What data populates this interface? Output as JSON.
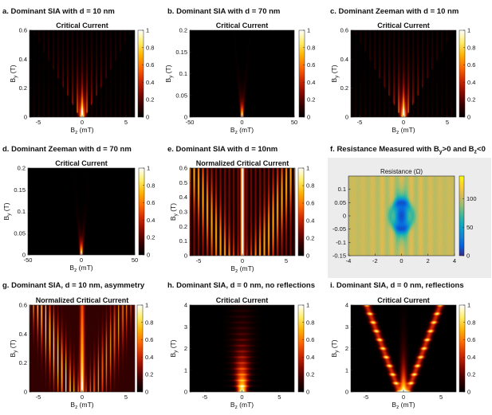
{
  "colors": {
    "heat": [
      "#000000",
      "#3a0000",
      "#8a0a00",
      "#d42a00",
      "#ff6a00",
      "#ffb300",
      "#ffee66",
      "#ffffff"
    ],
    "parula": [
      "#352a87",
      "#0363e1",
      "#1485d4",
      "#06a7c6",
      "#38b99e",
      "#92bf73",
      "#d9ba56",
      "#fcce2e",
      "#f9fb0e"
    ],
    "panel_f_bg": "#ececec"
  },
  "chart_data": [
    {
      "id": "a",
      "type": "heatmap",
      "panel_title": "a. Dominant SIA with d = 10 nm",
      "title": "Critical Current",
      "xlabel": "B",
      "xlabel_sub": "z",
      "xlabel_unit": " (mT)",
      "ylabel": "B",
      "ylabel_sub": "y",
      "ylabel_unit": " (T)",
      "xlim": [
        -6,
        6
      ],
      "ylim": [
        0,
        0.6
      ],
      "xticks": [
        -5,
        0,
        5
      ],
      "yticks": [
        0,
        0.2,
        0.4,
        0.6
      ],
      "xtick_labels": [
        "-5",
        "0",
        "5"
      ],
      "ytick_labels": [
        "0",
        "0.2",
        "0.4",
        "0.6"
      ],
      "colorbar": {
        "range": [
          0,
          1
        ],
        "ticks": [
          0,
          0.2,
          0.4,
          0.6,
          0.8,
          1
        ],
        "tick_labels": [
          "0",
          "0.2",
          "0.4",
          "0.6",
          "0.8",
          "1"
        ]
      },
      "pattern": "v_fan"
    },
    {
      "id": "b",
      "type": "heatmap",
      "panel_title": "b. Dominant SIA with d = 70 nm",
      "title": "Critical Current",
      "xlabel": "B",
      "xlabel_sub": "z",
      "xlabel_unit": " (mT)",
      "ylabel": "B",
      "ylabel_sub": "y",
      "ylabel_unit": " (T)",
      "xlim": [
        -50,
        50
      ],
      "ylim": [
        0,
        0.2
      ],
      "xticks": [
        -50,
        0,
        50
      ],
      "yticks": [
        0,
        0.05,
        0.1,
        0.15,
        0.2
      ],
      "xtick_labels": [
        "-50",
        "0",
        "50"
      ],
      "ytick_labels": [
        "0",
        "0.05",
        "0.1",
        "0.15",
        "0.2"
      ],
      "colorbar": {
        "range": [
          0,
          1
        ],
        "ticks": [
          0,
          0.2,
          0.4,
          0.6,
          0.8,
          1
        ],
        "tick_labels": [
          "0",
          "0.2",
          "0.4",
          "0.6",
          "0.8",
          "1"
        ]
      },
      "pattern": "narrow_v"
    },
    {
      "id": "c",
      "type": "heatmap",
      "panel_title": "c. Dominant Zeeman with d = 10 nm",
      "title": "Critical Current",
      "xlabel": "B",
      "xlabel_sub": "z",
      "xlabel_unit": " (mT)",
      "ylabel": "B",
      "ylabel_sub": "y",
      "ylabel_unit": " (T)",
      "xlim": [
        -6,
        6
      ],
      "ylim": [
        0,
        0.6
      ],
      "xticks": [
        -5,
        0,
        5
      ],
      "yticks": [
        0,
        0.2,
        0.4,
        0.6
      ],
      "xtick_labels": [
        "-5",
        "0",
        "5"
      ],
      "ytick_labels": [
        "0",
        "0.2",
        "0.4",
        "0.6"
      ],
      "colorbar": {
        "range": [
          0,
          1
        ],
        "ticks": [
          0,
          0.2,
          0.4,
          0.6,
          0.8,
          1
        ],
        "tick_labels": [
          "0",
          "0.2",
          "0.4",
          "0.6",
          "0.8",
          "1"
        ]
      },
      "pattern": "v_fan"
    },
    {
      "id": "d",
      "type": "heatmap",
      "panel_title": "d. Dominant Zeeman with d = 70 nm",
      "title": "Critical Current",
      "xlabel": "B",
      "xlabel_sub": "z",
      "xlabel_unit": " (mT)",
      "ylabel": "B",
      "ylabel_sub": "y",
      "ylabel_unit": " (T)",
      "xlim": [
        -50,
        50
      ],
      "ylim": [
        0,
        0.2
      ],
      "xticks": [
        -50,
        0,
        50
      ],
      "yticks": [
        0,
        0.05,
        0.1,
        0.15,
        0.2
      ],
      "xtick_labels": [
        "-50",
        "0",
        "50"
      ],
      "ytick_labels": [
        "0",
        "0.05",
        "0.1",
        "0.15",
        "0.2"
      ],
      "colorbar": {
        "range": [
          0,
          1
        ],
        "ticks": [
          0,
          0.2,
          0.4,
          0.6,
          0.8,
          1
        ],
        "tick_labels": [
          "0",
          "0.2",
          "0.4",
          "0.6",
          "0.8",
          "1"
        ]
      },
      "pattern": "narrow_v"
    },
    {
      "id": "e",
      "type": "heatmap",
      "panel_title": "e. Dominant SIA with d = 10nm",
      "title": "Normalized Critical Current",
      "xlabel": "B",
      "xlabel_sub": "z",
      "xlabel_unit": " (mT)",
      "ylabel": "B",
      "ylabel_sub": "y",
      "ylabel_unit": " (T)",
      "xlim": [
        -6,
        6
      ],
      "ylim": [
        0,
        0.6
      ],
      "xticks": [
        -5,
        0,
        5
      ],
      "yticks": [
        0,
        0.1,
        0.2,
        0.3,
        0.4,
        0.5,
        0.6
      ],
      "xtick_labels": [
        "-5",
        "0",
        "5"
      ],
      "ytick_labels": [
        "0",
        "0.1",
        "0.2",
        "0.3",
        "0.4",
        "0.5",
        "0.6"
      ],
      "colorbar": {
        "range": [
          0,
          1
        ],
        "ticks": [
          0,
          0.2,
          0.4,
          0.6,
          0.8,
          1
        ],
        "tick_labels": [
          "0",
          "0.2",
          "0.4",
          "0.6",
          "0.8",
          "1"
        ]
      },
      "pattern": "normalized"
    },
    {
      "id": "f",
      "type": "heatmap",
      "panel_title": "f. Resistance Measured with B",
      "panel_title_sub1": "y",
      "panel_title_mid": ">0 and B",
      "panel_title_sub2": "z",
      "panel_title_end": "<0",
      "title": "Resistance (Ω)",
      "xlabel": "",
      "ylabel": "",
      "xlim": [
        -4,
        4
      ],
      "ylim": [
        -0.15,
        0.15
      ],
      "xticks": [
        -4,
        -2,
        0,
        2,
        4
      ],
      "yticks": [
        -0.15,
        -0.1,
        -0.05,
        0,
        0.05,
        0.1
      ],
      "xtick_labels": [
        "-4",
        "-2",
        "0",
        "2",
        "4"
      ],
      "ytick_labels": [
        "-0.15",
        "-0.1",
        "-0.05",
        "0",
        "0.05",
        "0.1"
      ],
      "colorbar": {
        "range": [
          0,
          140
        ],
        "ticks": [
          0,
          50,
          100
        ],
        "tick_labels": [
          "0",
          "50",
          "100"
        ]
      },
      "pattern": "measured"
    },
    {
      "id": "g",
      "type": "heatmap",
      "panel_title": "g. Dominant SIA, d = 10 nm, asymmetry",
      "title": "Normalized Critical Current",
      "xlabel": "B",
      "xlabel_sub": "z",
      "xlabel_unit": " (mT)",
      "ylabel": "B",
      "ylabel_sub": "y",
      "ylabel_unit": " (T)",
      "xlim": [
        -6,
        6
      ],
      "ylim": [
        0,
        0.6
      ],
      "xticks": [
        -5,
        0,
        5
      ],
      "yticks": [
        0,
        0.2,
        0.4,
        0.6
      ],
      "xtick_labels": [
        "-5",
        "0",
        "5"
      ],
      "ytick_labels": [
        "0",
        "0.2",
        "0.4",
        "0.6"
      ],
      "colorbar": {
        "range": [
          0,
          1
        ],
        "ticks": [
          0,
          0.2,
          0.4,
          0.6,
          0.8,
          1
        ],
        "tick_labels": [
          "0",
          "0.2",
          "0.4",
          "0.6",
          "0.8",
          "1"
        ]
      },
      "pattern": "asymmetry"
    },
    {
      "id": "h",
      "type": "heatmap",
      "panel_title": "h. Dominant SIA, d = 0 nm, no reflections",
      "title": "Critical Current",
      "xlabel": "B",
      "xlabel_sub": "z",
      "xlabel_unit": " (mT)",
      "ylabel": "B",
      "ylabel_sub": "y",
      "ylabel_unit": " (T)",
      "xlim": [
        -7,
        7
      ],
      "ylim": [
        0,
        4
      ],
      "xticks": [
        -5,
        0,
        5
      ],
      "yticks": [
        0,
        1,
        2,
        3,
        4
      ],
      "xtick_labels": [
        "-5",
        "0",
        "5"
      ],
      "ytick_labels": [
        "0",
        "1",
        "2",
        "3",
        "4"
      ],
      "colorbar": {
        "range": [
          0,
          1
        ],
        "ticks": [
          0,
          0.2,
          0.4,
          0.6,
          0.8,
          1
        ],
        "tick_labels": [
          "0",
          "0.2",
          "0.4",
          "0.6",
          "0.8",
          "1"
        ]
      },
      "pattern": "no_reflections"
    },
    {
      "id": "i",
      "type": "heatmap",
      "panel_title": "i. Dominant SIA, d = 0 nm, reflections",
      "title": "Critical Current",
      "xlabel": "B",
      "xlabel_sub": "z",
      "xlabel_unit": " (mT)",
      "ylabel": "B",
      "ylabel_sub": "y",
      "ylabel_unit": " (T)",
      "xlim": [
        -7,
        7
      ],
      "ylim": [
        0,
        4
      ],
      "xticks": [
        -5,
        0,
        5
      ],
      "yticks": [
        0,
        1,
        2,
        3,
        4
      ],
      "xtick_labels": [
        "-5",
        "0",
        "5"
      ],
      "ytick_labels": [
        "0",
        "1",
        "2",
        "3",
        "4"
      ],
      "colorbar": {
        "range": [
          0,
          1
        ],
        "ticks": [
          0,
          0.2,
          0.4,
          0.6,
          0.8,
          1
        ],
        "tick_labels": [
          "0",
          "0.2",
          "0.4",
          "0.6",
          "0.8",
          "1"
        ]
      },
      "pattern": "reflections"
    }
  ]
}
